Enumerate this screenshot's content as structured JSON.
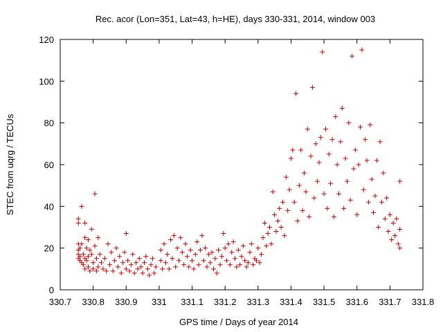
{
  "chart_data": {
    "type": "scatter",
    "title": "Rec. acor (Lon=351, Lat=43, h=HE), days 330-331, 2014, window 003",
    "xlabel": "GPS time / Days of year 2014",
    "ylabel": "STEC from uqrg / TECUs",
    "xlim": [
      330.7,
      331.8
    ],
    "ylim": [
      0,
      120
    ],
    "xticks": [
      "330.7",
      "330.8",
      "330.9",
      "331",
      "331.1",
      "331.2",
      "331.3",
      "331.4",
      "331.5",
      "331.6",
      "331.7",
      "331.8"
    ],
    "yticks": [
      "0",
      "20",
      "40",
      "60",
      "80",
      "100",
      "120"
    ],
    "grid": false,
    "legend": "none",
    "marker": "plus",
    "color": "#cc0000",
    "points": [
      [
        330.755,
        34
      ],
      [
        330.755,
        32
      ],
      [
        330.755,
        22
      ],
      [
        330.755,
        19
      ],
      [
        330.755,
        17
      ],
      [
        330.755,
        15
      ],
      [
        330.76,
        20
      ],
      [
        330.76,
        16
      ],
      [
        330.76,
        14
      ],
      [
        330.765,
        40
      ],
      [
        330.765,
        22
      ],
      [
        330.765,
        13
      ],
      [
        330.77,
        17
      ],
      [
        330.77,
        12
      ],
      [
        330.775,
        32
      ],
      [
        330.775,
        25
      ],
      [
        330.775,
        15
      ],
      [
        330.775,
        10
      ],
      [
        330.78,
        20
      ],
      [
        330.78,
        14
      ],
      [
        330.785,
        24
      ],
      [
        330.785,
        16
      ],
      [
        330.785,
        11
      ],
      [
        330.79,
        19
      ],
      [
        330.79,
        9
      ],
      [
        330.795,
        29
      ],
      [
        330.795,
        17
      ],
      [
        330.8,
        13
      ],
      [
        330.8,
        10
      ],
      [
        330.805,
        21
      ],
      [
        330.805,
        46
      ],
      [
        330.81,
        15
      ],
      [
        330.81,
        9
      ],
      [
        330.815,
        25
      ],
      [
        330.815,
        11
      ],
      [
        330.82,
        17
      ],
      [
        330.825,
        13
      ],
      [
        330.83,
        10
      ],
      [
        330.835,
        15
      ],
      [
        330.84,
        9
      ],
      [
        330.845,
        22
      ],
      [
        330.85,
        12
      ],
      [
        330.855,
        18
      ],
      [
        330.86,
        9
      ],
      [
        330.865,
        14
      ],
      [
        330.87,
        20
      ],
      [
        330.875,
        11
      ],
      [
        330.88,
        16
      ],
      [
        330.885,
        8
      ],
      [
        330.89,
        13
      ],
      [
        330.895,
        18
      ],
      [
        330.9,
        10
      ],
      [
        330.9,
        27
      ],
      [
        330.905,
        14
      ],
      [
        330.91,
        9
      ],
      [
        330.915,
        12
      ],
      [
        330.92,
        17
      ],
      [
        330.925,
        8
      ],
      [
        330.93,
        13
      ],
      [
        330.935,
        10
      ],
      [
        330.94,
        15
      ],
      [
        330.945,
        11
      ],
      [
        330.95,
        8
      ],
      [
        330.955,
        13
      ],
      [
        330.96,
        16
      ],
      [
        330.965,
        10
      ],
      [
        330.97,
        7
      ],
      [
        330.975,
        12
      ],
      [
        330.98,
        15
      ],
      [
        330.985,
        8
      ],
      [
        330.99,
        11
      ],
      [
        331.005,
        14
      ],
      [
        331.005,
        19
      ],
      [
        331.01,
        10
      ],
      [
        331.015,
        22
      ],
      [
        331.02,
        13
      ],
      [
        331.025,
        17
      ],
      [
        331.03,
        10
      ],
      [
        331.035,
        24
      ],
      [
        331.04,
        15
      ],
      [
        331.045,
        26
      ],
      [
        331.05,
        11
      ],
      [
        331.055,
        20
      ],
      [
        331.06,
        14
      ],
      [
        331.065,
        25
      ],
      [
        331.07,
        18
      ],
      [
        331.075,
        12
      ],
      [
        331.08,
        22
      ],
      [
        331.085,
        16
      ],
      [
        331.09,
        11
      ],
      [
        331.095,
        19
      ],
      [
        331.1,
        14
      ],
      [
        331.105,
        10
      ],
      [
        331.11,
        17
      ],
      [
        331.115,
        23
      ],
      [
        331.12,
        12
      ],
      [
        331.125,
        19
      ],
      [
        331.13,
        26
      ],
      [
        331.135,
        14
      ],
      [
        331.14,
        20
      ],
      [
        331.145,
        11
      ],
      [
        331.15,
        17
      ],
      [
        331.155,
        13
      ],
      [
        331.16,
        18
      ],
      [
        331.165,
        10
      ],
      [
        331.17,
        15
      ],
      [
        331.175,
        8
      ],
      [
        331.18,
        19
      ],
      [
        331.185,
        12
      ],
      [
        331.19,
        16
      ],
      [
        331.195,
        27
      ],
      [
        331.2,
        20
      ],
      [
        331.205,
        14
      ],
      [
        331.21,
        22
      ],
      [
        331.215,
        12
      ],
      [
        331.22,
        18
      ],
      [
        331.225,
        23
      ],
      [
        331.23,
        15
      ],
      [
        331.235,
        11
      ],
      [
        331.24,
        19
      ],
      [
        331.245,
        12
      ],
      [
        331.25,
        16
      ],
      [
        331.255,
        21
      ],
      [
        331.26,
        14
      ],
      [
        331.265,
        11
      ],
      [
        331.27,
        13
      ],
      [
        331.275,
        18
      ],
      [
        331.28,
        22
      ],
      [
        331.285,
        12
      ],
      [
        331.29,
        15
      ],
      [
        331.295,
        14
      ],
      [
        331.3,
        20
      ],
      [
        331.305,
        13
      ],
      [
        331.31,
        17
      ],
      [
        331.315,
        25
      ],
      [
        331.32,
        32
      ],
      [
        331.325,
        21
      ],
      [
        331.33,
        27
      ],
      [
        331.335,
        30
      ],
      [
        331.34,
        22
      ],
      [
        331.345,
        47
      ],
      [
        331.35,
        36
      ],
      [
        331.355,
        28
      ],
      [
        331.36,
        33
      ],
      [
        331.365,
        39
      ],
      [
        331.37,
        30
      ],
      [
        331.375,
        42
      ],
      [
        331.38,
        26
      ],
      [
        331.385,
        54
      ],
      [
        331.39,
        38
      ],
      [
        331.395,
        48
      ],
      [
        331.4,
        63
      ],
      [
        331.405,
        67
      ],
      [
        331.41,
        42
      ],
      [
        331.415,
        94
      ],
      [
        331.42,
        33
      ],
      [
        331.425,
        50
      ],
      [
        331.43,
        67
      ],
      [
        331.435,
        38
      ],
      [
        331.44,
        56
      ],
      [
        331.445,
        47
      ],
      [
        331.45,
        77
      ],
      [
        331.455,
        35
      ],
      [
        331.46,
        64
      ],
      [
        331.465,
        97
      ],
      [
        331.47,
        44
      ],
      [
        331.475,
        70
      ],
      [
        331.48,
        52
      ],
      [
        331.485,
        61
      ],
      [
        331.49,
        73
      ],
      [
        331.495,
        114
      ],
      [
        331.5,
        46
      ],
      [
        331.505,
        77
      ],
      [
        331.51,
        39
      ],
      [
        331.515,
        65
      ],
      [
        331.52,
        51
      ],
      [
        331.525,
        72
      ],
      [
        331.53,
        35
      ],
      [
        331.535,
        83
      ],
      [
        331.54,
        60
      ],
      [
        331.545,
        46
      ],
      [
        331.55,
        71
      ],
      [
        331.555,
        87
      ],
      [
        331.56,
        39
      ],
      [
        331.565,
        63
      ],
      [
        331.57,
        52
      ],
      [
        331.575,
        80
      ],
      [
        331.58,
        43
      ],
      [
        331.585,
        112
      ],
      [
        331.59,
        58
      ],
      [
        331.595,
        67
      ],
      [
        331.6,
        36
      ],
      [
        331.605,
        60
      ],
      [
        331.61,
        78
      ],
      [
        331.615,
        115
      ],
      [
        331.62,
        48
      ],
      [
        331.625,
        72
      ],
      [
        331.63,
        62
      ],
      [
        331.635,
        42
      ],
      [
        331.64,
        79
      ],
      [
        331.645,
        53
      ],
      [
        331.65,
        37
      ],
      [
        331.655,
        45
      ],
      [
        331.66,
        62
      ],
      [
        331.665,
        30
      ],
      [
        331.67,
        71
      ],
      [
        331.675,
        42
      ],
      [
        331.68,
        56
      ],
      [
        331.685,
        34
      ],
      [
        331.69,
        44
      ],
      [
        331.695,
        28
      ],
      [
        331.7,
        36
      ],
      [
        331.705,
        24
      ],
      [
        331.71,
        32
      ],
      [
        331.715,
        26
      ],
      [
        331.72,
        34
      ],
      [
        331.725,
        22
      ],
      [
        331.73,
        52
      ],
      [
        331.73,
        29
      ],
      [
        331.73,
        20
      ]
    ]
  }
}
